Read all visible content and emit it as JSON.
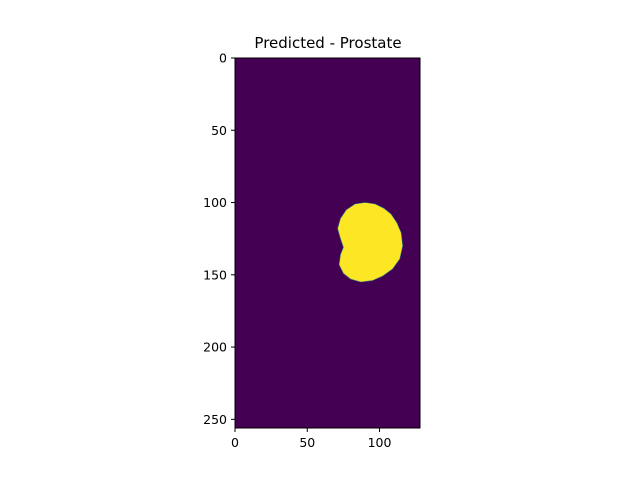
{
  "chart_data": {
    "type": "heatmap",
    "title": "Predicted - Prostate",
    "xlabel": "",
    "ylabel": "",
    "image_shape": [
      256,
      128
    ],
    "xlim": [
      0,
      128
    ],
    "ylim": [
      256,
      0
    ],
    "x_ticks": [
      0,
      50,
      100
    ],
    "y_ticks": [
      0,
      50,
      100,
      150,
      200,
      250
    ],
    "x_tick_labels": [
      "0",
      "50",
      "100"
    ],
    "y_tick_labels": [
      "0",
      "50",
      "100",
      "150",
      "200",
      "250"
    ],
    "colormap": "viridis",
    "background_value": 0,
    "background_color": "#440154",
    "foreground_value": 1,
    "foreground_color": "#fde725",
    "mask_region": {
      "label": "prostate",
      "boundary": [
        [
          90,
          100
        ],
        [
          97,
          101
        ],
        [
          103,
          104
        ],
        [
          108,
          108
        ],
        [
          112,
          114
        ],
        [
          115,
          121
        ],
        [
          116,
          130
        ],
        [
          114,
          139
        ],
        [
          109,
          146
        ],
        [
          102,
          151
        ],
        [
          95,
          154
        ],
        [
          87,
          155
        ],
        [
          80,
          153
        ],
        [
          75,
          149
        ],
        [
          72,
          143
        ],
        [
          73,
          136
        ],
        [
          75,
          131
        ],
        [
          73,
          125
        ],
        [
          71,
          118
        ],
        [
          73,
          111
        ],
        [
          77,
          105
        ],
        [
          83,
          101
        ]
      ]
    }
  }
}
